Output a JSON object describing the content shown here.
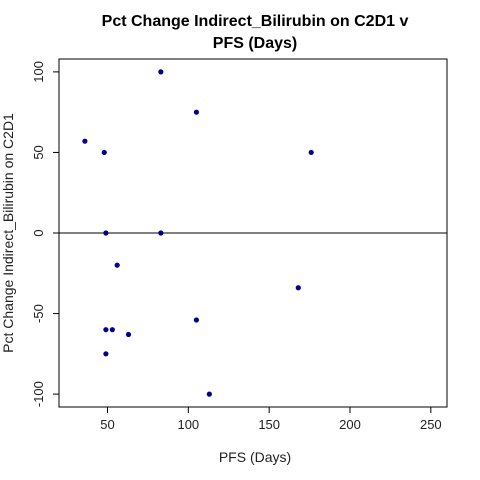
{
  "chart_data": {
    "type": "scatter",
    "title_lines": [
      "Pct Change Indirect_Bilirubin on C2D1 v",
      "PFS (Days)"
    ],
    "xlabel": "PFS (Days)",
    "ylabel": "Pct Change Indirect_Bilirubin on C2D1",
    "xlim": [
      20,
      260
    ],
    "ylim": [
      -108,
      108
    ],
    "x_ticks": [
      50,
      100,
      150,
      200,
      250
    ],
    "y_ticks": [
      -100,
      -50,
      0,
      50,
      100
    ],
    "reference_line_y": 0,
    "point_color": "#00008B",
    "grid": false,
    "legend": "none",
    "points": [
      {
        "x": 36,
        "y": 57
      },
      {
        "x": 48,
        "y": 50
      },
      {
        "x": 49,
        "y": 0
      },
      {
        "x": 49,
        "y": -60
      },
      {
        "x": 49,
        "y": -75
      },
      {
        "x": 53,
        "y": -60
      },
      {
        "x": 56,
        "y": -20
      },
      {
        "x": 63,
        "y": -63
      },
      {
        "x": 83,
        "y": 100
      },
      {
        "x": 83,
        "y": 0
      },
      {
        "x": 105,
        "y": 75
      },
      {
        "x": 105,
        "y": -54
      },
      {
        "x": 113,
        "y": -100
      },
      {
        "x": 168,
        "y": -34
      },
      {
        "x": 176,
        "y": 50
      }
    ]
  }
}
